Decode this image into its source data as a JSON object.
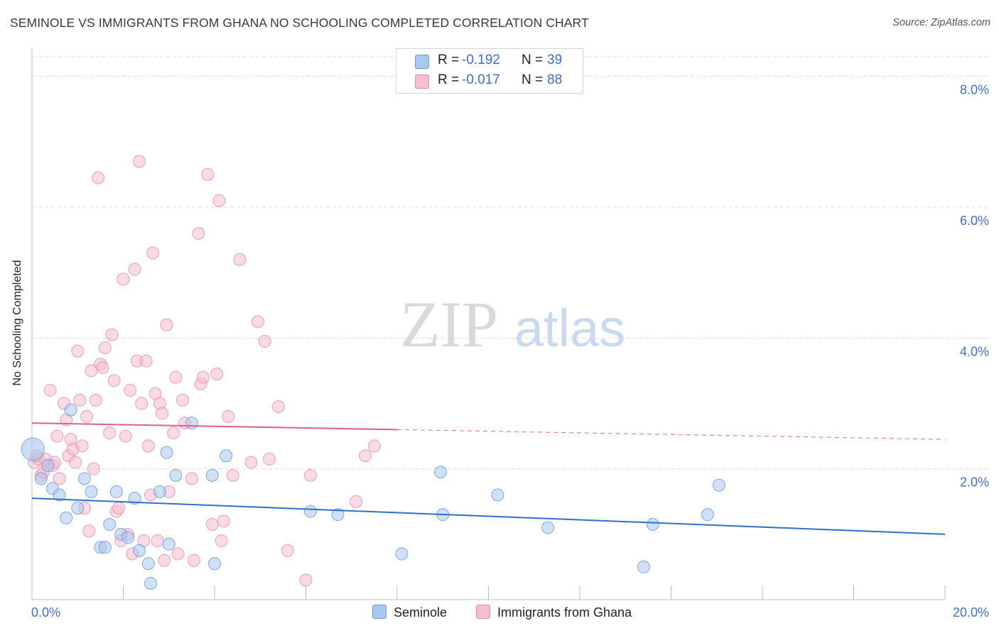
{
  "header": {
    "title": "SEMINOLE VS IMMIGRANTS FROM GHANA NO SCHOOLING COMPLETED CORRELATION CHART",
    "source": "Source: ZipAtlas.com"
  },
  "watermark": {
    "zip": "ZIP",
    "atlas": "atlas"
  },
  "legend": {
    "rows": [
      {
        "r_label": "R =",
        "r_value": "-0.192",
        "n_label": "N =",
        "n_value": "39"
      },
      {
        "r_label": "R =",
        "r_value": "-0.017",
        "n_label": "N =",
        "n_value": "88"
      }
    ]
  },
  "bottom_legend": {
    "seminole": "Seminole",
    "ghana": "Immigrants from Ghana"
  },
  "colors": {
    "seminole_fill": "#a9c7ef",
    "seminole_stroke": "#6a9bd8",
    "seminole_line": "#2f6fcc",
    "ghana_fill": "#f6bcd0",
    "ghana_stroke": "#e58aab",
    "ghana_line": "#e0608b",
    "tick_text": "#3f6fc4"
  },
  "chart_data": {
    "type": "scatter",
    "title": "SEMINOLE VS IMMIGRANTS FROM GHANA NO SCHOOLING COMPLETED CORRELATION CHART",
    "xlabel": "",
    "ylabel": "No Schooling Completed",
    "xlim": [
      0,
      20
    ],
    "ylim": [
      0,
      8.3
    ],
    "x_tick_labels": [
      "0.0%",
      "20.0%"
    ],
    "y_ticks": [
      2,
      4,
      6,
      8
    ],
    "y_tick_labels": [
      "2.0%",
      "4.0%",
      "6.0%",
      "8.0%"
    ],
    "grid": true,
    "legend_position": "top-center",
    "series": [
      {
        "name": "Seminole",
        "r": -0.192,
        "n": 39,
        "trend": {
          "x": [
            0,
            20
          ],
          "y": [
            1.55,
            1.0
          ]
        },
        "points": [
          [
            0.02,
            2.3
          ],
          [
            0.2,
            1.85
          ],
          [
            0.35,
            2.05
          ],
          [
            0.45,
            1.7
          ],
          [
            0.6,
            1.6
          ],
          [
            0.75,
            1.25
          ],
          [
            0.85,
            2.9
          ],
          [
            1.0,
            1.4
          ],
          [
            1.15,
            1.85
          ],
          [
            1.3,
            1.65
          ],
          [
            1.5,
            0.8
          ],
          [
            1.6,
            0.8
          ],
          [
            1.7,
            1.15
          ],
          [
            1.85,
            1.65
          ],
          [
            1.95,
            1.0
          ],
          [
            2.1,
            0.95
          ],
          [
            2.25,
            1.55
          ],
          [
            2.35,
            0.75
          ],
          [
            2.55,
            0.55
          ],
          [
            2.6,
            0.25
          ],
          [
            2.8,
            1.65
          ],
          [
            2.95,
            2.25
          ],
          [
            3.0,
            0.85
          ],
          [
            3.15,
            1.9
          ],
          [
            3.5,
            2.7
          ],
          [
            3.95,
            1.9
          ],
          [
            4.0,
            0.55
          ],
          [
            4.25,
            2.2
          ],
          [
            6.1,
            1.35
          ],
          [
            6.7,
            1.3
          ],
          [
            8.1,
            0.7
          ],
          [
            8.95,
            1.95
          ],
          [
            9.0,
            1.3
          ],
          [
            10.2,
            1.6
          ],
          [
            11.3,
            1.1
          ],
          [
            13.4,
            0.5
          ],
          [
            13.6,
            1.15
          ],
          [
            14.8,
            1.3
          ],
          [
            15.05,
            1.75
          ]
        ]
      },
      {
        "name": "Immigrants from Ghana",
        "r": -0.017,
        "n": 88,
        "trend": {
          "x": [
            0,
            8
          ],
          "y": [
            2.7,
            2.6
          ],
          "dashed_to": [
            20,
            2.45
          ]
        },
        "points": [
          [
            0.05,
            2.1
          ],
          [
            0.15,
            2.15
          ],
          [
            0.2,
            1.9
          ],
          [
            0.3,
            2.15
          ],
          [
            0.35,
            2.05
          ],
          [
            0.4,
            3.2
          ],
          [
            0.45,
            2.05
          ],
          [
            0.5,
            2.1
          ],
          [
            0.55,
            2.5
          ],
          [
            0.6,
            1.85
          ],
          [
            0.7,
            3.0
          ],
          [
            0.75,
            2.75
          ],
          [
            0.8,
            2.2
          ],
          [
            0.85,
            2.45
          ],
          [
            0.9,
            2.3
          ],
          [
            0.95,
            2.1
          ],
          [
            1.0,
            3.8
          ],
          [
            1.05,
            3.05
          ],
          [
            1.1,
            2.35
          ],
          [
            1.15,
            1.4
          ],
          [
            1.2,
            2.8
          ],
          [
            1.25,
            1.05
          ],
          [
            1.3,
            3.5
          ],
          [
            1.35,
            2.0
          ],
          [
            1.4,
            3.05
          ],
          [
            1.45,
            6.45
          ],
          [
            1.5,
            3.6
          ],
          [
            1.55,
            3.55
          ],
          [
            1.6,
            3.85
          ],
          [
            1.7,
            2.55
          ],
          [
            1.75,
            4.05
          ],
          [
            1.8,
            3.35
          ],
          [
            1.85,
            1.35
          ],
          [
            1.9,
            1.4
          ],
          [
            1.95,
            0.9
          ],
          [
            2.0,
            4.9
          ],
          [
            2.05,
            2.5
          ],
          [
            2.1,
            1.0
          ],
          [
            2.15,
            3.2
          ],
          [
            2.2,
            0.7
          ],
          [
            2.25,
            5.05
          ],
          [
            2.3,
            3.65
          ],
          [
            2.35,
            6.7
          ],
          [
            2.4,
            3.0
          ],
          [
            2.45,
            0.9
          ],
          [
            2.5,
            3.65
          ],
          [
            2.55,
            2.35
          ],
          [
            2.6,
            1.6
          ],
          [
            2.65,
            5.3
          ],
          [
            2.7,
            3.15
          ],
          [
            2.75,
            0.9
          ],
          [
            2.8,
            3.0
          ],
          [
            2.85,
            2.85
          ],
          [
            2.9,
            0.6
          ],
          [
            2.95,
            4.2
          ],
          [
            3.0,
            1.65
          ],
          [
            3.1,
            2.55
          ],
          [
            3.15,
            3.4
          ],
          [
            3.2,
            0.7
          ],
          [
            3.3,
            3.05
          ],
          [
            3.35,
            2.7
          ],
          [
            3.5,
            1.85
          ],
          [
            3.55,
            0.6
          ],
          [
            3.65,
            5.6
          ],
          [
            3.7,
            3.3
          ],
          [
            3.75,
            3.4
          ],
          [
            3.85,
            6.5
          ],
          [
            3.95,
            1.15
          ],
          [
            4.05,
            3.45
          ],
          [
            4.1,
            6.1
          ],
          [
            4.15,
            0.9
          ],
          [
            4.2,
            1.2
          ],
          [
            4.3,
            2.8
          ],
          [
            4.4,
            1.9
          ],
          [
            4.55,
            5.2
          ],
          [
            4.8,
            2.1
          ],
          [
            4.95,
            4.25
          ],
          [
            5.1,
            3.95
          ],
          [
            5.2,
            2.15
          ],
          [
            5.4,
            2.95
          ],
          [
            5.6,
            0.75
          ],
          [
            6.0,
            0.3
          ],
          [
            6.1,
            1.9
          ],
          [
            7.1,
            1.5
          ],
          [
            7.3,
            2.2
          ],
          [
            7.5,
            2.35
          ],
          [
            0.1,
            2.2
          ],
          [
            0.25,
            1.95
          ]
        ]
      }
    ]
  }
}
